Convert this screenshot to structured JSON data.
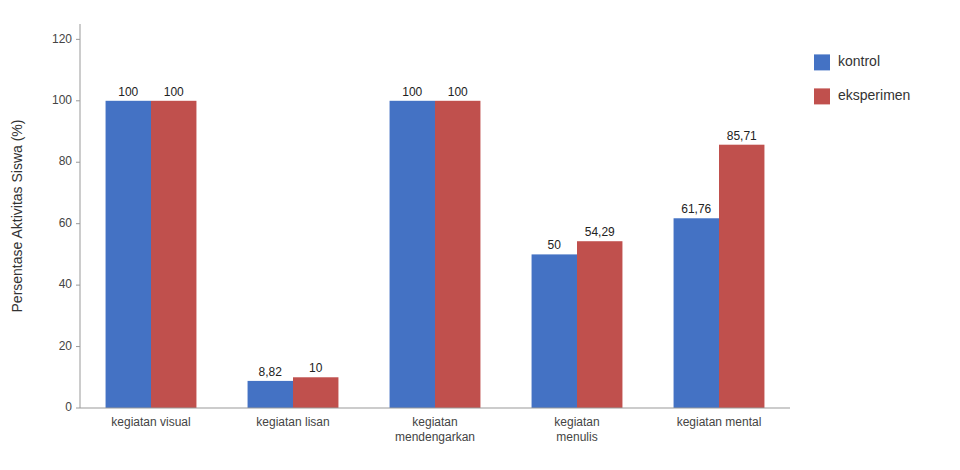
{
  "chart_data": {
    "type": "bar",
    "categories": [
      "kegiatan visual",
      "kegiatan lisan",
      "kegiatan\nmendengarkan",
      "kegiatan\nmenulis",
      "kegiatan mental"
    ],
    "series": [
      {
        "name": "kontrol",
        "color": "#4472C4",
        "values": [
          100,
          8.82,
          100,
          50,
          61.76
        ],
        "value_labels": [
          "100",
          "8,82",
          "100",
          "50",
          "61,76"
        ]
      },
      {
        "name": "eksperimen",
        "color": "#C0504D",
        "values": [
          100,
          10,
          100,
          54.29,
          85.71
        ],
        "value_labels": [
          "100",
          "10",
          "100",
          "54,29",
          "85,71"
        ]
      }
    ],
    "y_label": "Persentase Aktivitas Siswa (%)",
    "ylim": [
      0,
      125
    ],
    "yticks": [
      0,
      20,
      40,
      60,
      80,
      100,
      120
    ],
    "grid": false,
    "legend": "right",
    "data_labels": true
  }
}
